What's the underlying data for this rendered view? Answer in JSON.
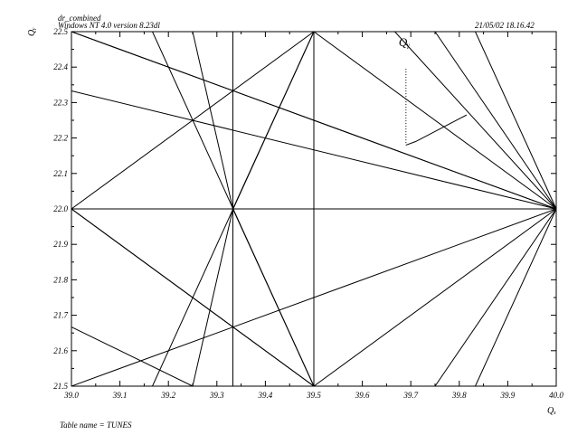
{
  "header": {
    "program_name": "dr_combined",
    "platform": "Windows NT 4.0 version 8.23dl",
    "datetime": "21/05/02  18.16.42"
  },
  "footer": {
    "table_name": "Table name = TUNES"
  },
  "chart_data": {
    "type": "line",
    "title": "",
    "xlabel": "Qₓ",
    "ylabel": "Qᵧ",
    "xlim": [
      39.0,
      40.0
    ],
    "ylim": [
      21.5,
      22.5
    ],
    "x_ticks": [
      "39.0",
      "39.1",
      "39.2",
      "39.3",
      "39.4",
      "39.5",
      "39.6",
      "39.7",
      "39.8",
      "39.9",
      "40.0"
    ],
    "y_ticks": [
      "21.5",
      "21.6",
      "21.7",
      "21.8",
      "21.9",
      "22.0",
      "22.1",
      "22.2",
      "22.3",
      "22.4",
      "22.5"
    ],
    "annotation": {
      "text": "Qᵧ",
      "x": 39.69,
      "y": 22.47
    },
    "marker_path": [
      [
        39.69,
        22.395
      ],
      [
        39.69,
        22.18
      ],
      [
        39.71,
        22.19
      ],
      [
        39.815,
        22.265
      ]
    ],
    "resonance_lines": [
      [
        [
          39.0,
          22.5
        ],
        [
          40.0,
          22.0
        ]
      ],
      [
        [
          39.0,
          22.333
        ],
        [
          40.0,
          22.0
        ]
      ],
      [
        [
          39.0,
          22.0
        ],
        [
          40.0,
          22.0
        ]
      ],
      [
        [
          39.0,
          21.667
        ],
        [
          39.25,
          21.5
        ]
      ],
      [
        [
          39.0,
          22.0
        ],
        [
          39.5,
          22.5
        ]
      ],
      [
        [
          39.0,
          22.0
        ],
        [
          39.5,
          21.5
        ]
      ],
      [
        [
          39.333,
          21.5
        ],
        [
          39.333,
          22.5
        ]
      ],
      [
        [
          39.5,
          21.5
        ],
        [
          39.5,
          22.5
        ]
      ],
      [
        [
          39.5,
          22.5
        ],
        [
          40.0,
          22.0
        ]
      ],
      [
        [
          39.5,
          21.5
        ],
        [
          40.0,
          22.0
        ]
      ],
      [
        [
          39.5,
          22.5
        ],
        [
          39.167,
          21.5
        ]
      ],
      [
        [
          39.5,
          21.5
        ],
        [
          39.167,
          22.5
        ]
      ],
      [
        [
          39.333,
          22.0
        ],
        [
          39.5,
          22.5
        ]
      ],
      [
        [
          39.333,
          22.0
        ],
        [
          39.5,
          21.5
        ]
      ],
      [
        [
          39.333,
          22.0
        ],
        [
          39.25,
          22.5
        ]
      ],
      [
        [
          39.333,
          22.0
        ],
        [
          39.25,
          21.5
        ]
      ],
      [
        [
          39.0,
          21.5
        ],
        [
          40.0,
          22.0
        ]
      ],
      [
        [
          39.0,
          22.5
        ],
        [
          40.0,
          22.0
        ]
      ],
      [
        [
          39.667,
          22.5
        ],
        [
          40.0,
          22.0
        ]
      ],
      [
        [
          39.75,
          21.5
        ],
        [
          40.0,
          22.0
        ]
      ],
      [
        [
          39.833,
          22.5
        ],
        [
          40.0,
          22.0
        ]
      ],
      [
        [
          39.833,
          21.5
        ],
        [
          40.0,
          22.0
        ]
      ],
      [
        [
          39.75,
          22.5
        ],
        [
          40.0,
          22.0
        ]
      ],
      [
        [
          39.0,
          22.0
        ],
        [
          39.5,
          21.5
        ]
      ],
      [
        [
          39.167,
          21.5
        ],
        [
          39.25,
          21.5
        ]
      ]
    ]
  }
}
